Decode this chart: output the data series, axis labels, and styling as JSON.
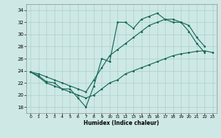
{
  "xlabel": "Humidex (Indice chaleur)",
  "bg_color": "#cde8e5",
  "grid_color": "#aacfcc",
  "line_color": "#1a6b5a",
  "xlim": [
    -0.5,
    23.5
  ],
  "ylim": [
    17.0,
    35.0
  ],
  "xticks": [
    0,
    1,
    2,
    3,
    4,
    5,
    6,
    7,
    8,
    9,
    10,
    11,
    12,
    13,
    14,
    15,
    16,
    17,
    18,
    19,
    20,
    21,
    22,
    23
  ],
  "yticks": [
    18,
    20,
    22,
    24,
    26,
    28,
    30,
    32,
    34
  ],
  "line1_x": [
    0,
    1,
    2,
    3,
    4,
    5,
    6,
    7,
    8,
    9,
    10,
    11,
    12,
    13,
    14,
    15,
    16,
    17,
    18,
    19,
    20,
    21,
    22,
    23
  ],
  "line1_y": [
    23.8,
    23.2,
    22.2,
    22.0,
    21.0,
    21.0,
    19.5,
    18.0,
    21.5,
    26.0,
    25.5,
    32.0,
    32.0,
    31.0,
    32.5,
    33.0,
    33.5,
    32.5,
    32.0,
    32.0,
    30.5,
    28.5,
    27.0,
    null
  ],
  "line2_x": [
    0,
    1,
    2,
    3,
    4,
    5,
    6,
    7,
    8,
    9,
    10,
    11,
    12,
    13,
    14,
    15,
    16,
    17,
    18,
    19,
    20,
    21,
    22,
    23
  ],
  "line2_y": [
    23.8,
    23.5,
    23.0,
    22.5,
    22.0,
    21.5,
    21.0,
    20.5,
    22.5,
    24.5,
    26.5,
    27.5,
    28.5,
    29.5,
    30.5,
    31.5,
    32.0,
    32.5,
    32.5,
    32.0,
    31.5,
    29.5,
    28.0,
    null
  ],
  "line3_x": [
    0,
    1,
    2,
    3,
    4,
    5,
    6,
    7,
    8,
    9,
    10,
    11,
    12,
    13,
    14,
    15,
    16,
    17,
    18,
    19,
    20,
    21,
    22,
    23
  ],
  "line3_y": [
    23.8,
    23.0,
    22.0,
    21.5,
    21.0,
    20.5,
    20.0,
    19.5,
    20.0,
    21.0,
    22.0,
    22.5,
    23.5,
    24.0,
    24.5,
    25.0,
    25.5,
    26.0,
    26.5,
    26.8,
    27.0,
    27.2,
    27.3,
    27.0
  ]
}
